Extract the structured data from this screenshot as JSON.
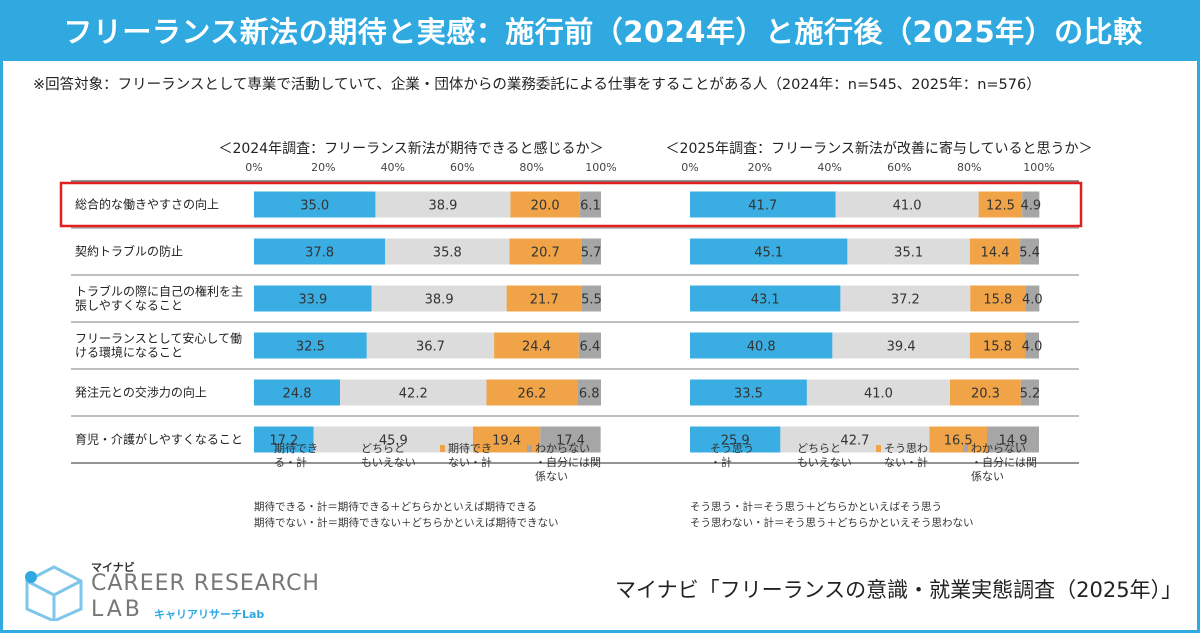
{
  "title": "フリーランス新法の期待と実感：施行前（2024年）と施行後（2025年）の比較",
  "subtitle": "※回答対象：フリーランスとして専業で活動していて、企業・団体からの業務委託による仕事をすることがある人（2024年：n=545、2025年：n=576）",
  "source": "マイナビ「フリーランスの意識・就業実態調査（2025年）」",
  "logo": {
    "small": "マイナビ",
    "main": "CAREER RESEARCH",
    "lab": "LAB",
    "kana": "キャリアリサーチLab"
  },
  "colors": {
    "series1": "#3aaee2",
    "series2": "#dcdcdc",
    "series3": "#f0a447",
    "series4": "#a6a6a6",
    "highlight": "#e02020",
    "accent": "#2fa9e0"
  },
  "chart_data": [
    {
      "type": "bar",
      "stacked": true,
      "orientation": "horizontal",
      "title": "＜2024年調査：フリーランス新法が期待できると感じるか＞",
      "xlim": [
        0,
        100
      ],
      "ticks": [
        "0%",
        "20%",
        "40%",
        "60%",
        "80%",
        "100%"
      ],
      "categories": [
        "総合的な働きやすさの向上",
        "契約トラブルの防止",
        "トラブルの際に自己の権利を主張しやすくなること",
        "フリーランスとして安心して働ける環境になること",
        "発注元との交渉力の向上",
        "育児・介護がしやすくなること"
      ],
      "category_lines": [
        [
          "総合的な働きやすさの向上"
        ],
        [
          "契約トラブルの防止"
        ],
        [
          "トラブルの際に自己の権利を主",
          "張しやすくなること"
        ],
        [
          "フリーランスとして安心して働",
          "ける環境になること"
        ],
        [
          "発注元との交渉力の向上"
        ],
        [
          "育児・介護がしやすくなること"
        ]
      ],
      "series": [
        {
          "name": "期待できる・計",
          "values": [
            35.0,
            37.8,
            33.9,
            32.5,
            24.8,
            17.2
          ]
        },
        {
          "name": "どちらともいえない",
          "values": [
            38.9,
            35.8,
            38.9,
            36.7,
            42.2,
            45.9
          ]
        },
        {
          "name": "期待できない・計",
          "values": [
            20.0,
            20.7,
            21.7,
            24.4,
            26.2,
            19.4
          ]
        },
        {
          "name": "わからない・自分には関係ない",
          "values": [
            6.1,
            5.7,
            5.5,
            6.4,
            6.8,
            17.4
          ]
        }
      ],
      "legend": [
        [
          "期待でき",
          "る・計"
        ],
        [
          "どちらと",
          "もいえない"
        ],
        [
          "期待でき",
          "ない・計"
        ],
        [
          "わからない",
          "・自分には関",
          "係ない"
        ]
      ],
      "notes": [
        "期待できる・計＝期待できる＋どちらかといえば期待できる",
        "期待でない・計＝期待できない＋どちらかといえば期待できない"
      ],
      "highlight_row": 0
    },
    {
      "type": "bar",
      "stacked": true,
      "orientation": "horizontal",
      "title": "＜2025年調査：フリーランス新法が改善に寄与していると思うか＞",
      "xlim": [
        0,
        100
      ],
      "ticks": [
        "0%",
        "20%",
        "40%",
        "60%",
        "80%",
        "100%"
      ],
      "categories": [
        "総合的な働きやすさの向上",
        "契約トラブルの防止",
        "トラブルの際に自己の権利を主張しやすくなること",
        "フリーランスとして安心して働ける環境になること",
        "発注元との交渉力の向上",
        "育児・介護がしやすくなること"
      ],
      "series": [
        {
          "name": "そう思う・計",
          "values": [
            41.7,
            45.1,
            43.1,
            40.8,
            33.5,
            25.9
          ]
        },
        {
          "name": "どちらともいえない",
          "values": [
            41.0,
            35.1,
            37.2,
            39.4,
            41.0,
            42.7
          ]
        },
        {
          "name": "そう思わない・計",
          "values": [
            12.5,
            14.4,
            15.8,
            15.8,
            20.3,
            16.5
          ]
        },
        {
          "name": "わからない・自分には関係ない",
          "values": [
            4.9,
            5.4,
            4.0,
            4.0,
            5.2,
            14.9
          ]
        }
      ],
      "legend": [
        [
          "そう思う",
          "・計"
        ],
        [
          "どちらと",
          "もいえない"
        ],
        [
          "そう思わ",
          "ない・計"
        ],
        [
          "わからない",
          "・自分には関",
          "係ない"
        ]
      ],
      "notes": [
        "そう思う・計＝そう思う＋どちらかといえばそう思う",
        "そう思わない・計＝そう思う＋どちらかといえそう思わない"
      ],
      "highlight_row": 0
    }
  ]
}
